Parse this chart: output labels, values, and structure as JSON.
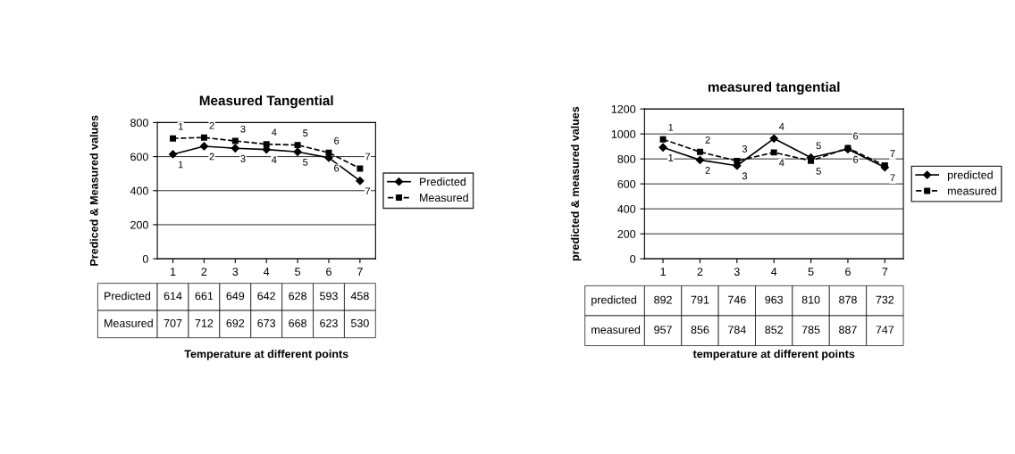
{
  "chart_data": [
    {
      "type": "line",
      "title": "Measured Tangential",
      "xlabel": "Temperature at different points",
      "ylabel": "Prediced & Measured values",
      "categories": [
        "1",
        "2",
        "3",
        "4",
        "5",
        "6",
        "7"
      ],
      "series": [
        {
          "name": "Predicted",
          "color": "#000000",
          "marker": "diamond",
          "line_style": "solid",
          "values": [
            614,
            661,
            649,
            642,
            628,
            593,
            458
          ],
          "value_labels": [
            "614",
            "661",
            "649",
            "642",
            "628",
            "593",
            "458"
          ]
        },
        {
          "name": "Measured",
          "color": "#000000",
          "marker": "square",
          "line_style": "dashed",
          "values": [
            707,
            712,
            692,
            673,
            668,
            623,
            530
          ],
          "value_labels": [
            "707",
            "712",
            "692",
            "673",
            "668",
            "623",
            "530"
          ]
        }
      ],
      "annotations": [
        {
          "text": "1",
          "x": "1",
          "y": 614
        },
        {
          "text": "2",
          "x": "2",
          "y": 661
        },
        {
          "text": "3",
          "x": "3",
          "y": 649
        },
        {
          "text": "4",
          "x": "4",
          "y": 642
        },
        {
          "text": "5",
          "x": "5",
          "y": 628
        },
        {
          "text": "6",
          "x": "6",
          "y": 593
        },
        {
          "text": "7",
          "x": "7",
          "y": 458
        },
        {
          "text": "1",
          "x": "1",
          "y": 707
        },
        {
          "text": "2",
          "x": "2",
          "y": 712
        },
        {
          "text": "3",
          "x": "3",
          "y": 692
        },
        {
          "text": "4",
          "x": "4",
          "y": 673
        },
        {
          "text": "5",
          "x": "5",
          "y": 668
        },
        {
          "text": "6",
          "x": "6",
          "y": 623
        },
        {
          "text": "7",
          "x": "7",
          "y": 530
        }
      ],
      "ylim": [
        0,
        800
      ],
      "yticks": [
        0,
        200,
        400,
        600,
        800
      ],
      "grid": "y",
      "legend": "right"
    },
    {
      "type": "line",
      "title": "measured tangential",
      "xlabel": "temperature at different points",
      "ylabel": "predicted & measured values",
      "categories": [
        "1",
        "2",
        "3",
        "4",
        "5",
        "6",
        "7"
      ],
      "series": [
        {
          "name": "predicted",
          "color": "#000000",
          "marker": "diamond",
          "line_style": "solid",
          "values": [
            892,
            791,
            746,
            963,
            810,
            878,
            732
          ],
          "value_labels": [
            "892",
            "791",
            "746",
            "963",
            "810",
            "878",
            "732"
          ]
        },
        {
          "name": "measured",
          "color": "#000000",
          "marker": "square",
          "line_style": "dashed",
          "values": [
            957,
            856,
            784,
            852,
            785,
            887,
            747
          ],
          "value_labels": [
            "957",
            "856",
            "784",
            "852",
            "785",
            "887",
            "747"
          ]
        }
      ],
      "annotations": [
        {
          "text": "1",
          "x": "1",
          "y": 892
        },
        {
          "text": "2",
          "x": "2",
          "y": 791
        },
        {
          "text": "3",
          "x": "3",
          "y": 746
        },
        {
          "text": "4",
          "x": "4",
          "y": 963
        },
        {
          "text": "5",
          "x": "5",
          "y": 810
        },
        {
          "text": "6",
          "x": "6",
          "y": 878
        },
        {
          "text": "7",
          "x": "7",
          "y": 732
        },
        {
          "text": "1",
          "x": "1",
          "y": 957
        },
        {
          "text": "2",
          "x": "2",
          "y": 856
        },
        {
          "text": "3",
          "x": "3",
          "y": 784
        },
        {
          "text": "4",
          "x": "4",
          "y": 852
        },
        {
          "text": "5",
          "x": "5",
          "y": 785
        },
        {
          "text": "6",
          "x": "6",
          "y": 887
        },
        {
          "text": "7",
          "x": "7",
          "y": 747
        }
      ],
      "ylim": [
        0,
        1200
      ],
      "yticks": [
        0,
        200,
        400,
        600,
        800,
        1000,
        1200
      ],
      "grid": "y",
      "legend": "right"
    }
  ]
}
